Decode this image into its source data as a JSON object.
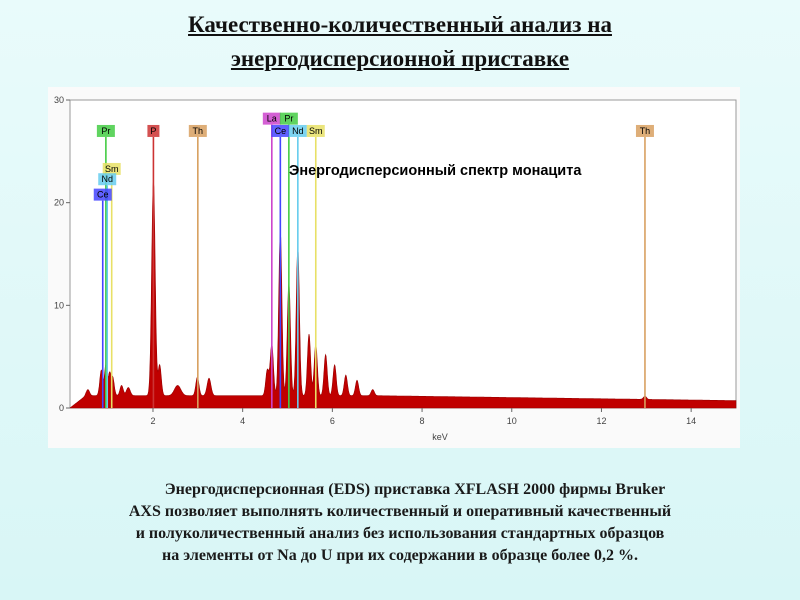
{
  "slide": {
    "title_line1": "Качественно-количественный анализ на",
    "title_line2": "энергодисперсионной приставке",
    "description_lines": [
      "Энергодисперсионная (EDS) приставка XFLASH 2000 фирмы Bruker",
      "AXS позволяет выполнять количественный и оперативный качественный",
      "и полуколичественный анализ без использования стандартных образцов",
      "на элементы от Na до U при их содержании в образце более 0,2 %."
    ]
  },
  "chart_data": {
    "type": "area",
    "title": "Энергодисперсионный спектр монацита",
    "xlabel": "keV",
    "ylabel": "",
    "xlim": [
      0.15,
      15
    ],
    "ylim": [
      0,
      30
    ],
    "x_ticks": [
      2,
      4,
      6,
      8,
      10,
      12,
      14
    ],
    "y_ticks": [
      0,
      10,
      20,
      30
    ],
    "y_tick_labels": [
      "0",
      "10",
      "20",
      "30"
    ],
    "grid": false,
    "fill_color": "#c00000",
    "background_level": 1.2,
    "series": [
      {
        "peaks": [
          {
            "x": 0.55,
            "h": 0.6,
            "w": 0.05
          },
          {
            "x": 0.85,
            "h": 2.5,
            "w": 0.05
          },
          {
            "x": 0.95,
            "h": 3.0,
            "w": 0.04
          },
          {
            "x": 1.03,
            "h": 2.0,
            "w": 0.04
          },
          {
            "x": 1.1,
            "h": 1.8,
            "w": 0.05
          },
          {
            "x": 1.3,
            "h": 1.0,
            "w": 0.05
          },
          {
            "x": 1.45,
            "h": 0.8,
            "w": 0.06
          },
          {
            "x": 2.01,
            "h": 21.0,
            "w": 0.055
          },
          {
            "x": 2.15,
            "h": 3.0,
            "w": 0.05
          },
          {
            "x": 2.55,
            "h": 1.0,
            "w": 0.1
          },
          {
            "x": 2.99,
            "h": 1.8,
            "w": 0.05
          },
          {
            "x": 3.25,
            "h": 1.7,
            "w": 0.06
          },
          {
            "x": 4.55,
            "h": 2.5,
            "w": 0.05
          },
          {
            "x": 4.65,
            "h": 5.0,
            "w": 0.05
          },
          {
            "x": 4.84,
            "h": 16.0,
            "w": 0.05
          },
          {
            "x": 5.03,
            "h": 11.0,
            "w": 0.05
          },
          {
            "x": 5.23,
            "h": 14.5,
            "w": 0.05
          },
          {
            "x": 5.48,
            "h": 6.0,
            "w": 0.05
          },
          {
            "x": 5.63,
            "h": 5.0,
            "w": 0.05
          },
          {
            "x": 5.85,
            "h": 4.0,
            "w": 0.05
          },
          {
            "x": 6.05,
            "h": 3.0,
            "w": 0.05
          },
          {
            "x": 6.3,
            "h": 2.0,
            "w": 0.05
          },
          {
            "x": 6.55,
            "h": 1.5,
            "w": 0.05
          },
          {
            "x": 6.9,
            "h": 0.6,
            "w": 0.05
          },
          {
            "x": 12.97,
            "h": 0.3,
            "w": 0.05
          }
        ]
      }
    ],
    "element_markers": [
      {
        "label": "Pr",
        "x": 0.95,
        "height": 26.4,
        "color": "#44cc44"
      },
      {
        "label": "Sm",
        "x": 1.08,
        "height": 22.7,
        "color": "#e8e066"
      },
      {
        "label": "Nd",
        "x": 0.98,
        "height": 21.7,
        "color": "#66ccee"
      },
      {
        "label": "Ce",
        "x": 0.88,
        "height": 20.2,
        "color": "#4444ff"
      },
      {
        "label": "P",
        "x": 2.01,
        "height": 26.4,
        "color": "#cc3333"
      },
      {
        "label": "Th",
        "x": 3.0,
        "height": 26.4,
        "color": "#d8a060"
      },
      {
        "label": "La",
        "x": 4.65,
        "height": 27.6,
        "color": "#cc44cc"
      },
      {
        "label": "Pr",
        "x": 5.03,
        "height": 27.6,
        "color": "#44cc44"
      },
      {
        "label": "Ce",
        "x": 4.84,
        "height": 26.4,
        "color": "#4444ff"
      },
      {
        "label": "Nd",
        "x": 5.23,
        "height": 26.4,
        "color": "#66ccee"
      },
      {
        "label": "Sm",
        "x": 5.63,
        "height": 26.4,
        "color": "#e8e066"
      },
      {
        "label": "Th",
        "x": 12.97,
        "height": 26.4,
        "color": "#d8a060"
      }
    ]
  }
}
